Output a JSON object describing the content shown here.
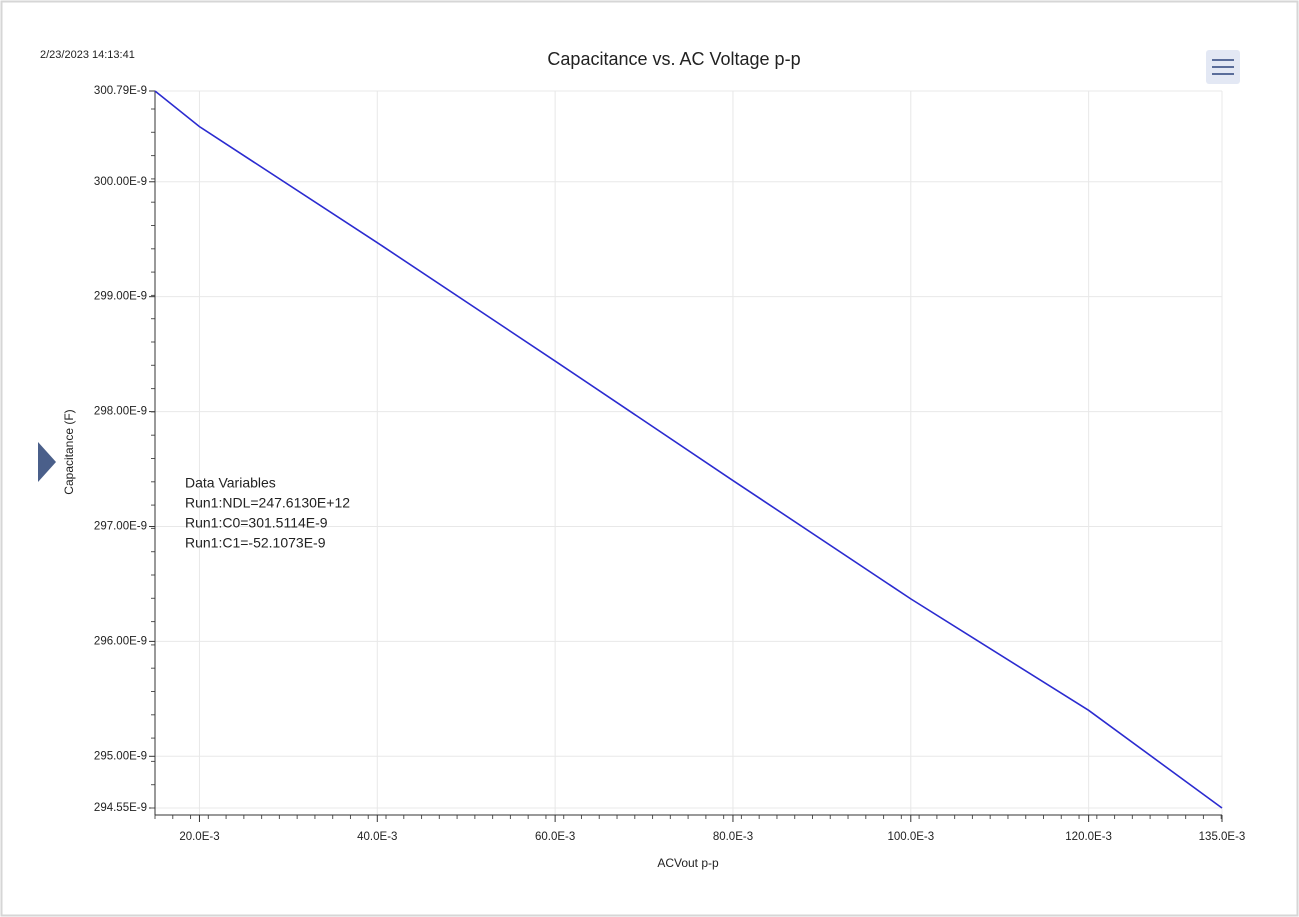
{
  "chart_data": {
    "type": "line",
    "timestamp": "2/23/2023 14:13:41",
    "title": "Capacitance vs. AC Voltage p-p",
    "x_label": "ACVout p-p",
    "y_label": "Capacitance (F)",
    "annotation": {
      "heading": "Data Variables",
      "lines": [
        "Run1:NDL=247.6130E+12",
        "Run1:C0=301.5114E-9",
        "Run1:C1=-52.1073E-9"
      ]
    },
    "x": [
      0.015,
      0.02,
      0.04,
      0.06,
      0.08,
      0.1,
      0.12,
      0.135
    ],
    "series": [
      {
        "name": "Run1",
        "color": "#2b2bd0",
        "values": [
          3.0079e-07,
          3.0048e-07,
          2.9947e-07,
          2.9844e-07,
          2.974e-07,
          2.9637e-07,
          2.954e-07,
          2.9455e-07
        ]
      }
    ],
    "xlim": [
      0.015,
      0.135
    ],
    "ylim": [
      2.9455e-07,
      3.0079e-07
    ],
    "xticks": [
      {
        "value": 0.02,
        "label": "20.0E-3"
      },
      {
        "value": 0.04,
        "label": "40.0E-3"
      },
      {
        "value": 0.06,
        "label": "60.0E-3"
      },
      {
        "value": 0.08,
        "label": "80.0E-3"
      },
      {
        "value": 0.1,
        "label": "100.0E-3"
      },
      {
        "value": 0.12,
        "label": "120.0E-3"
      },
      {
        "value": 0.135,
        "label": "135.0E-3"
      }
    ],
    "yticks": [
      {
        "value": 2.9455e-07,
        "label": "294.55E-9"
      },
      {
        "value": 2.95e-07,
        "label": "295.00E-9"
      },
      {
        "value": 2.96e-07,
        "label": "296.00E-9"
      },
      {
        "value": 2.97e-07,
        "label": "297.00E-9"
      },
      {
        "value": 2.98e-07,
        "label": "298.00E-9"
      },
      {
        "value": 2.99e-07,
        "label": "299.00E-9"
      },
      {
        "value": 3e-07,
        "label": "300.00E-9"
      },
      {
        "value": 3.0079e-07,
        "label": "300.79E-9"
      }
    ],
    "grid": true
  }
}
